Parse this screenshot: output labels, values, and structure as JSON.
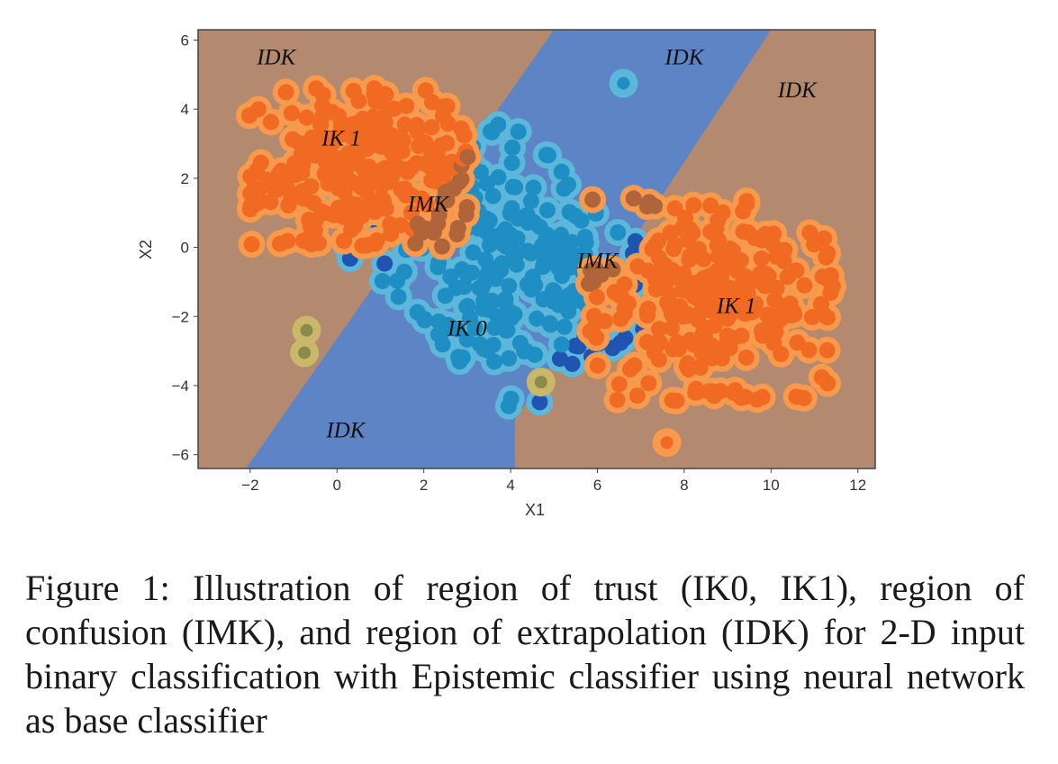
{
  "chart_data": {
    "type": "scatter",
    "xlabel": "X1",
    "ylabel": "X2",
    "xlim": [
      -3.2,
      12.4
    ],
    "ylim": [
      -6.4,
      6.3
    ],
    "xticks": [
      -2,
      0,
      2,
      4,
      6,
      8,
      10,
      12
    ],
    "yticks": [
      6,
      4,
      2,
      0,
      -2,
      -4,
      -6
    ],
    "xtick_labels": [
      "−2",
      "0",
      "2",
      "4",
      "6",
      "8",
      "10",
      "12"
    ],
    "ytick_labels": [
      "6",
      "4",
      "2",
      "0",
      "−2",
      "−4",
      "−6"
    ],
    "grid": false,
    "colors": {
      "background": "#b3896f",
      "idk_band": "#5d85c6",
      "ik0": "#1f8ec2",
      "ik0_border": "#5db7da",
      "imk_dark": "#1f55b0",
      "ik1": "#f06a24",
      "ik1_border": "#f79a4d",
      "imk_brown": "#b0643a",
      "olive": "#8a8a4a",
      "olive_light": "#c9b86a"
    },
    "idk_band_polygon": [
      [
        -2.1,
        -6.4
      ],
      [
        4.1,
        -6.4
      ],
      [
        4.1,
        -5.0
      ],
      [
        10.0,
        6.3
      ],
      [
        5.0,
        6.3
      ],
      [
        -2.1,
        -6.4
      ]
    ],
    "clusters": [
      {
        "name": "IK 0",
        "cx": 3.8,
        "cy": -0.3,
        "rx": 2.6,
        "ry": 3.6,
        "angle": 40
      },
      {
        "name": "IK 1",
        "cx": 0.5,
        "cy": 2.3,
        "rx": 2.4,
        "ry": 2.2,
        "angle": 0
      },
      {
        "name": "IK 1",
        "cx": 8.6,
        "cy": -1.5,
        "rx": 2.7,
        "ry": 2.8,
        "angle": 0
      }
    ],
    "outliers": [
      {
        "x": 6.6,
        "y": 4.75,
        "color": "#5db7da",
        "core": "#1f8ec2"
      },
      {
        "x": 7.6,
        "y": -5.65,
        "color": "#f79a4d",
        "core": "#f06a24"
      },
      {
        "x": -0.7,
        "y": -2.4,
        "color": "#c9b86a",
        "core": "#8a8a4a"
      },
      {
        "x": -0.75,
        "y": -3.05,
        "color": "#c9b86a",
        "core": "#8a8a4a"
      },
      {
        "x": 4.7,
        "y": -3.9,
        "color": "#c9b86a",
        "core": "#8a8a4a"
      }
    ],
    "annotations": [
      {
        "text": "IDK",
        "x": -1.4,
        "y": 5.3
      },
      {
        "text": "IDK",
        "x": 8.0,
        "y": 5.3
      },
      {
        "text": "IDK",
        "x": 10.6,
        "y": 4.35
      },
      {
        "text": "IK 1",
        "x": 0.1,
        "y": 2.95
      },
      {
        "text": "IMK",
        "x": 2.1,
        "y": 1.05
      },
      {
        "text": "IMK",
        "x": 6.0,
        "y": -0.6
      },
      {
        "text": "IK 1",
        "x": 9.2,
        "y": -1.9
      },
      {
        "text": "IK 0",
        "x": 3.0,
        "y": -2.55
      },
      {
        "text": "IDK",
        "x": 0.2,
        "y": -5.5
      }
    ]
  },
  "caption": "Figure 1: Illustration of region of trust (IK0, IK1), region of confusion (IMK), and region of extrapolation (IDK) for 2-D input binary classification with Epistemic classifier using neural network as base classifier"
}
